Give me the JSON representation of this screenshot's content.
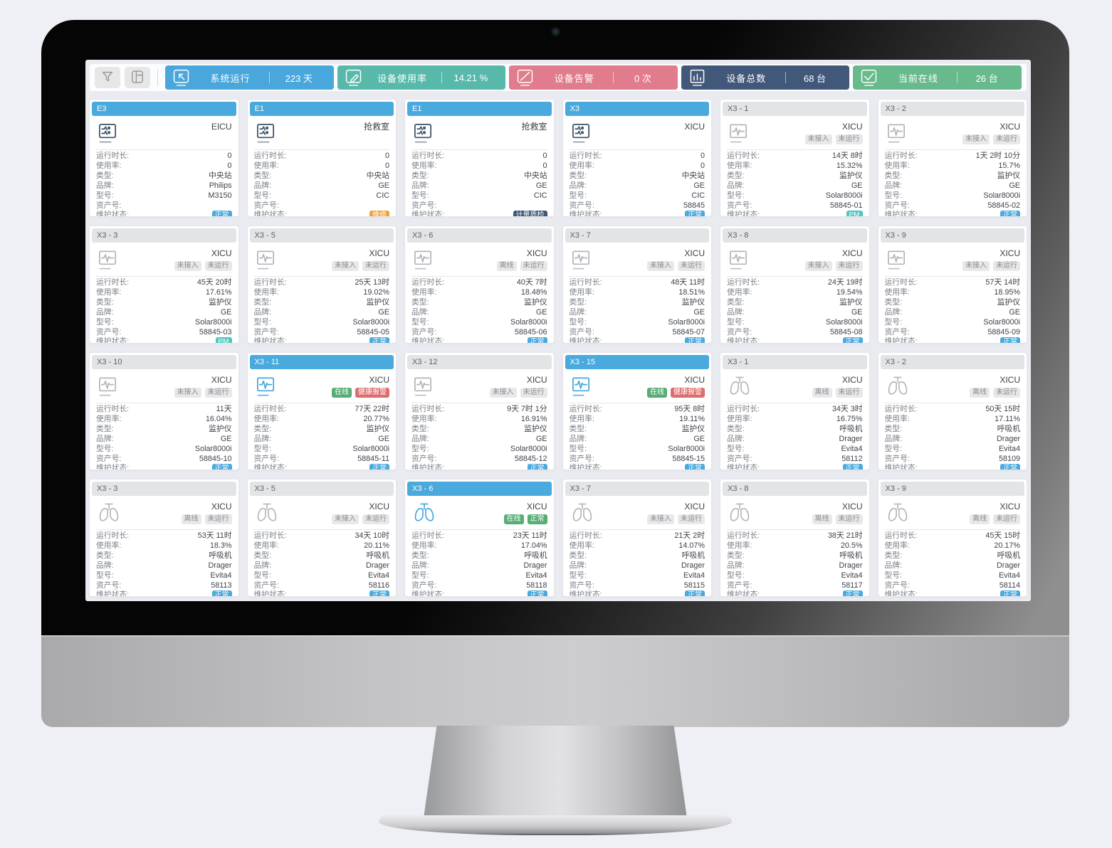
{
  "toolbar": {
    "controls": [
      {
        "name": "filter",
        "icon": "funnel-icon"
      },
      {
        "name": "layout",
        "icon": "layout-icon"
      }
    ],
    "stats": [
      {
        "label": "系统运行",
        "value": "223 天",
        "color": "#4aa7db",
        "icon": "cursor-monitor-icon"
      },
      {
        "label": "设备使用率",
        "value": "14.21 %",
        "color": "#58b9ab",
        "icon": "edit-monitor-icon"
      },
      {
        "label": "设备告警",
        "value": "0 次",
        "color": "#e07c8b",
        "icon": "slash-monitor-icon"
      },
      {
        "label": "设备总数",
        "value": "68 台",
        "color": "#42587a",
        "icon": "barchart-monitor-icon"
      },
      {
        "label": "当前在线",
        "value": "26 台",
        "color": "#68ba8c",
        "icon": "check-monitor-icon"
      }
    ]
  },
  "field_labels": {
    "duration": "运行时长:",
    "usage": "使用率:",
    "type": "类型:",
    "brand": "品牌:",
    "model": "型号:",
    "asset": "资产号:",
    "maintenance": "维护状态:"
  },
  "badge_styles": {
    "gray": {
      "bg": "#e8e8ea",
      "fg": "#8a8a8f"
    },
    "green": {
      "bg": "#57ad74",
      "fg": "#ffffff"
    },
    "red": {
      "bg": "#dd6e6e",
      "fg": "#ffffff"
    },
    "blue": {
      "bg": "#4aa9dd",
      "fg": "#ffffff"
    },
    "orange": {
      "bg": "#efa23d",
      "fg": "#ffffff"
    },
    "navy": {
      "bg": "#3f5674",
      "fg": "#ffffff"
    },
    "teal": {
      "bg": "#4ec6c0",
      "fg": "#ffffff"
    }
  },
  "icon_colors": {
    "central": "#3d5166",
    "inactive": "#b3b6ba",
    "active": "#45a7dd"
  },
  "cards": [
    {
      "header": "E3",
      "header_active": true,
      "icon": "central",
      "icon_active": false,
      "location": "EICU",
      "badges": [],
      "duration": "0",
      "usage": "0",
      "type": "中央站",
      "brand": "Philips",
      "model": "M3150",
      "asset": "",
      "maintenance": {
        "text": "正常",
        "style": "blue"
      }
    },
    {
      "header": "E1",
      "header_active": true,
      "icon": "central",
      "icon_active": false,
      "location": "抢救室",
      "badges": [],
      "duration": "0",
      "usage": "0",
      "type": "中央站",
      "brand": "GE",
      "model": "CIC",
      "asset": "",
      "maintenance": {
        "text": "维修",
        "style": "orange"
      }
    },
    {
      "header": "E1",
      "header_active": true,
      "icon": "central",
      "icon_active": false,
      "location": "抢救室",
      "badges": [],
      "duration": "0",
      "usage": "0",
      "type": "中央站",
      "brand": "GE",
      "model": "CIC",
      "asset": "",
      "maintenance": {
        "text": "计量质检",
        "style": "navy"
      }
    },
    {
      "header": "X3",
      "header_active": true,
      "icon": "central",
      "icon_active": false,
      "location": "XICU",
      "badges": [],
      "duration": "0",
      "usage": "0",
      "type": "中央站",
      "brand": "GE",
      "model": "CIC",
      "asset": "58845",
      "maintenance": {
        "text": "正常",
        "style": "blue"
      }
    },
    {
      "header": "X3 - 1",
      "header_active": false,
      "icon": "monitor",
      "icon_active": false,
      "location": "XICU",
      "badges": [
        {
          "text": "未接入",
          "style": "gray"
        },
        {
          "text": "未运行",
          "style": "gray"
        }
      ],
      "duration": "14天 8时",
      "usage": "15.32%",
      "type": "监护仪",
      "brand": "GE",
      "model": "Solar8000i",
      "asset": "58845-01",
      "maintenance": {
        "text": "PM",
        "style": "teal"
      }
    },
    {
      "header": "X3 - 2",
      "header_active": false,
      "icon": "monitor",
      "icon_active": false,
      "location": "XICU",
      "badges": [
        {
          "text": "未接入",
          "style": "gray"
        },
        {
          "text": "未运行",
          "style": "gray"
        }
      ],
      "duration": "1天 2时 10分",
      "usage": "15.7%",
      "type": "监护仪",
      "brand": "GE",
      "model": "Solar8000i",
      "asset": "58845-02",
      "maintenance": {
        "text": "正常",
        "style": "blue"
      }
    },
    {
      "header": "X3 - 3",
      "header_active": false,
      "icon": "monitor",
      "icon_active": false,
      "location": "XICU",
      "badges": [
        {
          "text": "未接入",
          "style": "gray"
        },
        {
          "text": "未运行",
          "style": "gray"
        }
      ],
      "duration": "45天 20时",
      "usage": "17.61%",
      "type": "监护仪",
      "brand": "GE",
      "model": "Solar8000i",
      "asset": "58845-03",
      "maintenance": {
        "text": "PM",
        "style": "teal"
      }
    },
    {
      "header": "X3 - 5",
      "header_active": false,
      "icon": "monitor",
      "icon_active": false,
      "location": "XICU",
      "badges": [
        {
          "text": "未接入",
          "style": "gray"
        },
        {
          "text": "未运行",
          "style": "gray"
        }
      ],
      "duration": "25天 13时",
      "usage": "19.02%",
      "type": "监护仪",
      "brand": "GE",
      "model": "Solar8000i",
      "asset": "58845-05",
      "maintenance": {
        "text": "正常",
        "style": "blue"
      }
    },
    {
      "header": "X3 - 6",
      "header_active": false,
      "icon": "monitor",
      "icon_active": false,
      "location": "XICU",
      "badges": [
        {
          "text": "离线",
          "style": "gray"
        },
        {
          "text": "未运行",
          "style": "gray"
        }
      ],
      "duration": "40天 7时",
      "usage": "18.48%",
      "type": "监护仪",
      "brand": "GE",
      "model": "Solar8000i",
      "asset": "58845-06",
      "maintenance": {
        "text": "正常",
        "style": "blue"
      }
    },
    {
      "header": "X3 - 7",
      "header_active": false,
      "icon": "monitor",
      "icon_active": false,
      "location": "XICU",
      "badges": [
        {
          "text": "未接入",
          "style": "gray"
        },
        {
          "text": "未运行",
          "style": "gray"
        }
      ],
      "duration": "48天 11时",
      "usage": "18.51%",
      "type": "监护仪",
      "brand": "GE",
      "model": "Solar8000i",
      "asset": "58845-07",
      "maintenance": {
        "text": "正常",
        "style": "blue"
      }
    },
    {
      "header": "X3 - 8",
      "header_active": false,
      "icon": "monitor",
      "icon_active": false,
      "location": "XICU",
      "badges": [
        {
          "text": "未接入",
          "style": "gray"
        },
        {
          "text": "未运行",
          "style": "gray"
        }
      ],
      "duration": "24天 19时",
      "usage": "19.54%",
      "type": "监护仪",
      "brand": "GE",
      "model": "Solar8000i",
      "asset": "58845-08",
      "maintenance": {
        "text": "正常",
        "style": "blue"
      }
    },
    {
      "header": "X3 - 9",
      "header_active": false,
      "icon": "monitor",
      "icon_active": false,
      "location": "XICU",
      "badges": [
        {
          "text": "未接入",
          "style": "gray"
        },
        {
          "text": "未运行",
          "style": "gray"
        }
      ],
      "duration": "57天 14时",
      "usage": "18.95%",
      "type": "监护仪",
      "brand": "GE",
      "model": "Solar8000i",
      "asset": "58845-09",
      "maintenance": {
        "text": "正常",
        "style": "blue"
      }
    },
    {
      "header": "X3 - 10",
      "header_active": false,
      "icon": "monitor",
      "icon_active": false,
      "location": "XICU",
      "badges": [
        {
          "text": "未接入",
          "style": "gray"
        },
        {
          "text": "未运行",
          "style": "gray"
        }
      ],
      "duration": "11天",
      "usage": "16.04%",
      "type": "监护仪",
      "brand": "GE",
      "model": "Solar8000i",
      "asset": "58845-10",
      "maintenance": {
        "text": "正常",
        "style": "blue"
      }
    },
    {
      "header": "X3 - 11",
      "header_active": true,
      "icon": "monitor",
      "icon_active": true,
      "location": "XICU",
      "badges": [
        {
          "text": "在线",
          "style": "green"
        },
        {
          "text": "健康报警",
          "style": "red"
        }
      ],
      "duration": "77天 22时",
      "usage": "20.77%",
      "type": "监护仪",
      "brand": "GE",
      "model": "Solar8000i",
      "asset": "58845-11",
      "maintenance": {
        "text": "正常",
        "style": "blue"
      }
    },
    {
      "header": "X3 - 12",
      "header_active": false,
      "icon": "monitor",
      "icon_active": false,
      "location": "XICU",
      "badges": [
        {
          "text": "未接入",
          "style": "gray"
        },
        {
          "text": "未运行",
          "style": "gray"
        }
      ],
      "duration": "9天 7时 1分",
      "usage": "16.91%",
      "type": "监护仪",
      "brand": "GE",
      "model": "Solar8000i",
      "asset": "58845-12",
      "maintenance": {
        "text": "正常",
        "style": "blue"
      }
    },
    {
      "header": "X3 - 15",
      "header_active": true,
      "icon": "monitor",
      "icon_active": true,
      "location": "XICU",
      "badges": [
        {
          "text": "在线",
          "style": "green"
        },
        {
          "text": "健康报警",
          "style": "red"
        }
      ],
      "duration": "95天 8时",
      "usage": "19.11%",
      "type": "监护仪",
      "brand": "GE",
      "model": "Solar8000i",
      "asset": "58845-15",
      "maintenance": {
        "text": "正常",
        "style": "blue"
      }
    },
    {
      "header": "X3 - 1",
      "header_active": false,
      "icon": "lungs",
      "icon_active": false,
      "location": "XICU",
      "badges": [
        {
          "text": "离线",
          "style": "gray"
        },
        {
          "text": "未运行",
          "style": "gray"
        }
      ],
      "duration": "34天 3时",
      "usage": "16.75%",
      "type": "呼吸机",
      "brand": "Drager",
      "model": "Evita4",
      "asset": "58112",
      "maintenance": {
        "text": "正常",
        "style": "blue"
      }
    },
    {
      "header": "X3 - 2",
      "header_active": false,
      "icon": "lungs",
      "icon_active": false,
      "location": "XICU",
      "badges": [
        {
          "text": "离线",
          "style": "gray"
        },
        {
          "text": "未运行",
          "style": "gray"
        }
      ],
      "duration": "50天 15时",
      "usage": "17.11%",
      "type": "呼吸机",
      "brand": "Drager",
      "model": "Evita4",
      "asset": "58109",
      "maintenance": {
        "text": "正常",
        "style": "blue"
      }
    },
    {
      "header": "X3 - 3",
      "header_active": false,
      "icon": "lungs",
      "icon_active": false,
      "location": "XICU",
      "badges": [
        {
          "text": "离线",
          "style": "gray"
        },
        {
          "text": "未运行",
          "style": "gray"
        }
      ],
      "duration": "53天 11时",
      "usage": "18.3%",
      "type": "呼吸机",
      "brand": "Drager",
      "model": "Evita4",
      "asset": "58113",
      "maintenance": {
        "text": "正常",
        "style": "blue"
      }
    },
    {
      "header": "X3 - 5",
      "header_active": false,
      "icon": "lungs",
      "icon_active": false,
      "location": "XICU",
      "badges": [
        {
          "text": "未接入",
          "style": "gray"
        },
        {
          "text": "未运行",
          "style": "gray"
        }
      ],
      "duration": "34天 10时",
      "usage": "20.11%",
      "type": "呼吸机",
      "brand": "Drager",
      "model": "Evita4",
      "asset": "58116",
      "maintenance": {
        "text": "正常",
        "style": "blue"
      }
    },
    {
      "header": "X3 - 6",
      "header_active": true,
      "icon": "lungs",
      "icon_active": true,
      "location": "XICU",
      "badges": [
        {
          "text": "在线",
          "style": "green"
        },
        {
          "text": "正常",
          "style": "green"
        }
      ],
      "duration": "23天 11时",
      "usage": "17.04%",
      "type": "呼吸机",
      "brand": "Drager",
      "model": "Evita4",
      "asset": "58118",
      "maintenance": {
        "text": "正常",
        "style": "blue"
      }
    },
    {
      "header": "X3 - 7",
      "header_active": false,
      "icon": "lungs",
      "icon_active": false,
      "location": "XICU",
      "badges": [
        {
          "text": "未接入",
          "style": "gray"
        },
        {
          "text": "未运行",
          "style": "gray"
        }
      ],
      "duration": "21天 2时",
      "usage": "14.07%",
      "type": "呼吸机",
      "brand": "Drager",
      "model": "Evita4",
      "asset": "58115",
      "maintenance": {
        "text": "正常",
        "style": "blue"
      }
    },
    {
      "header": "X3 - 8",
      "header_active": false,
      "icon": "lungs",
      "icon_active": false,
      "location": "XICU",
      "badges": [
        {
          "text": "离线",
          "style": "gray"
        },
        {
          "text": "未运行",
          "style": "gray"
        }
      ],
      "duration": "38天 21时",
      "usage": "20.5%",
      "type": "呼吸机",
      "brand": "Drager",
      "model": "Evita4",
      "asset": "58117",
      "maintenance": {
        "text": "正常",
        "style": "blue"
      }
    },
    {
      "header": "X3 - 9",
      "header_active": false,
      "icon": "lungs",
      "icon_active": false,
      "location": "XICU",
      "badges": [
        {
          "text": "离线",
          "style": "gray"
        },
        {
          "text": "未运行",
          "style": "gray"
        }
      ],
      "duration": "45天 15时",
      "usage": "20.17%",
      "type": "呼吸机",
      "brand": "Drager",
      "model": "Evita4",
      "asset": "58114",
      "maintenance": {
        "text": "正常",
        "style": "blue"
      }
    }
  ]
}
